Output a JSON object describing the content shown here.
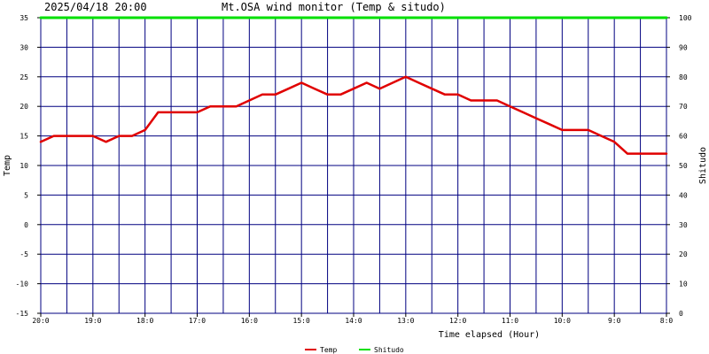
{
  "header": {
    "timestamp": "2025/04/18 20:00",
    "title": "Mt.OSA wind monitor (Temp & situdo)"
  },
  "chart_data": {
    "type": "line",
    "title": "Mt.OSA wind monitor (Temp & situdo)",
    "xlabel": "Time elapsed (Hour)",
    "ylabel": "Temp",
    "y2label": "Shitudo",
    "ylim": [
      -15,
      35
    ],
    "y2lim": [
      0,
      100
    ],
    "yticks": [
      "35",
      "30",
      "25",
      "20",
      "15",
      "10",
      "5",
      "0",
      "-5",
      "-10",
      "-15"
    ],
    "y2ticks": [
      "100",
      "90",
      "80",
      "70",
      "60",
      "50",
      "40",
      "30",
      "20",
      "10",
      "0"
    ],
    "x_tick_labels": [
      "20:0",
      "19:0",
      "18:0",
      "17:0",
      "16:0",
      "15:0",
      "14:0",
      "13:0",
      "12:0",
      "11:0",
      "10:0",
      "9:0",
      "8:0"
    ],
    "grid": true,
    "legend_position": "bottom-center",
    "colors": {
      "temp": "#e00000",
      "shitudo": "#00e000",
      "grid": "#000080"
    },
    "series": [
      {
        "name": "Temp",
        "axis": "left",
        "x_hours_elapsed": [
          0,
          0.25,
          0.5,
          0.75,
          1.0,
          1.25,
          1.5,
          1.75,
          2.0,
          2.25,
          2.5,
          2.75,
          3.0,
          3.25,
          3.5,
          3.75,
          4.0,
          4.25,
          4.5,
          4.75,
          5.0,
          5.25,
          5.5,
          5.75,
          6.0,
          6.25,
          6.5,
          6.75,
          7.0,
          7.25,
          7.5,
          7.75,
          8.0,
          8.25,
          8.5,
          8.75,
          9.0,
          9.25,
          9.5,
          9.75,
          10.0,
          10.25,
          10.5,
          10.75,
          11.0,
          11.25,
          11.5,
          11.75,
          12.0
        ],
        "values": [
          14,
          15,
          15,
          15,
          15,
          14,
          15,
          15,
          16,
          19,
          19,
          19,
          19,
          20,
          20,
          20,
          21,
          22,
          22,
          23,
          24,
          23,
          22,
          22,
          23,
          24,
          23,
          24,
          25,
          24,
          23,
          22,
          22,
          21,
          21,
          21,
          20,
          19,
          18,
          17,
          16,
          16,
          16,
          15,
          14,
          12,
          12,
          12,
          12
        ]
      },
      {
        "name": "Shitudo",
        "axis": "right",
        "x_hours_elapsed": [
          0,
          12
        ],
        "values": [
          100,
          100
        ]
      }
    ]
  },
  "legend": [
    {
      "label": "Temp",
      "color": "#e00000"
    },
    {
      "label": "Shitudo",
      "color": "#00e000"
    }
  ]
}
